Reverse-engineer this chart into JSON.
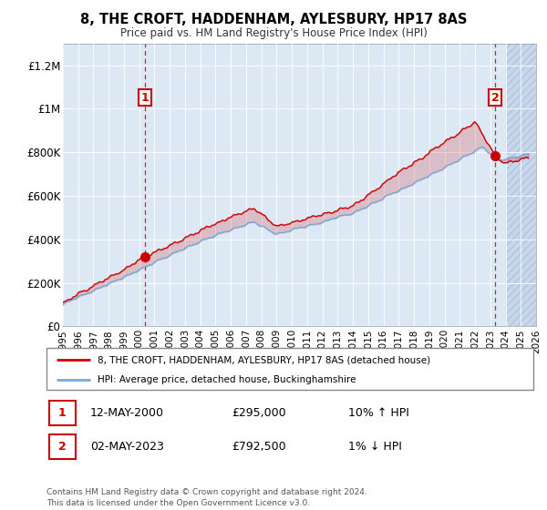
{
  "title": "8, THE CROFT, HADDENHAM, AYLESBURY, HP17 8AS",
  "subtitle": "Price paid vs. HM Land Registry's House Price Index (HPI)",
  "legend_line1": "8, THE CROFT, HADDENHAM, AYLESBURY, HP17 8AS (detached house)",
  "legend_line2": "HPI: Average price, detached house, Buckinghamshire",
  "footer": "Contains HM Land Registry data © Crown copyright and database right 2024.\nThis data is licensed under the Open Government Licence v3.0.",
  "point1_date": "12-MAY-2000",
  "point1_price": "£295,000",
  "point1_hpi": "10% ↑ HPI",
  "point2_date": "02-MAY-2023",
  "point2_price": "£792,500",
  "point2_hpi": "1% ↓ HPI",
  "point1_year": 2000.37,
  "point2_year": 2023.33,
  "point1_value": 295000,
  "point2_value": 792500,
  "ylim": [
    0,
    1300000
  ],
  "xlim_start": 1995,
  "xlim_end": 2026,
  "hpi_color": "#74aadb",
  "price_color": "#cc0000",
  "bg_color": "#dce9f5",
  "hatch_color": "#c8d8ec",
  "grid_color": "#ffffff",
  "yticks": [
    0,
    200000,
    400000,
    600000,
    800000,
    1000000,
    1200000
  ],
  "ytick_labels": [
    "£0",
    "£200K",
    "£400K",
    "£600K",
    "£800K",
    "£1M",
    "£1.2M"
  ]
}
